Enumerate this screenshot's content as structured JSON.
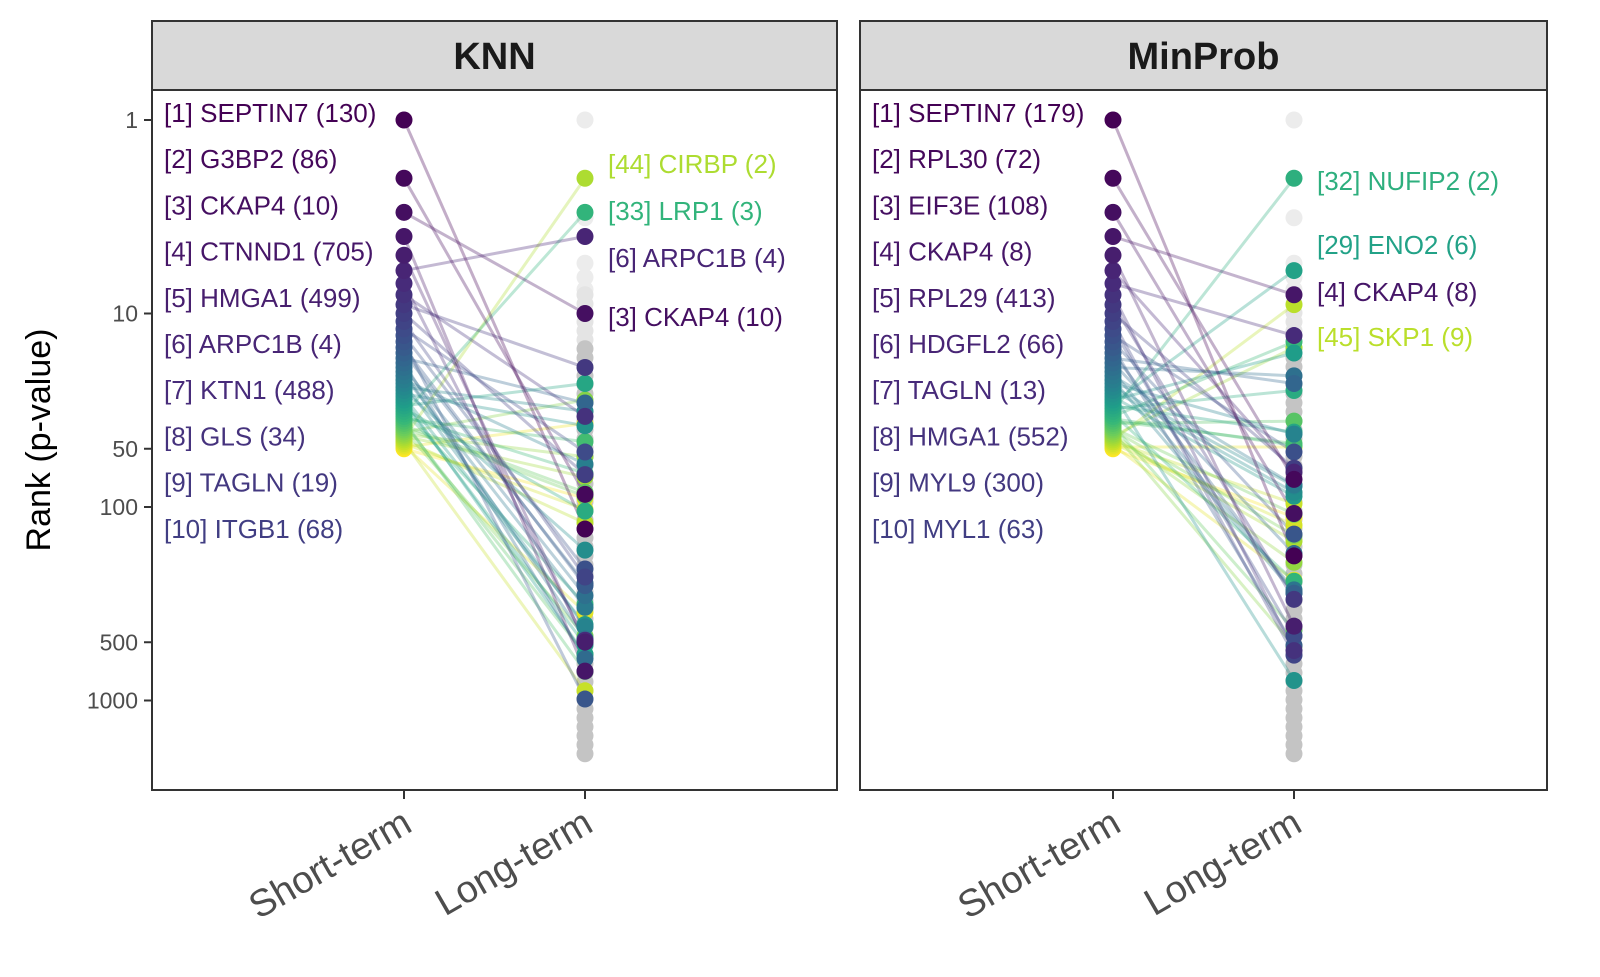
{
  "chart_data": {
    "type": "line",
    "ylabel": "Rank (p-value)",
    "y_scale": "log",
    "y_reversed": true,
    "yticks": [
      1,
      10,
      50,
      100,
      500,
      1000
    ],
    "categories": [
      "Short-term",
      "Long-term"
    ],
    "color_scale": "viridis (by short-term rank 1–50)",
    "panels": [
      {
        "title": "KNN",
        "short_term_labels": [
          {
            "rank": 1,
            "text": "[1] SEPTIN7 (130)",
            "long_rank": 130
          },
          {
            "rank": 2,
            "text": "[2] G3BP2 (86)",
            "long_rank": 86
          },
          {
            "rank": 3,
            "text": "[3] CKAP4 (10)",
            "long_rank": 10
          },
          {
            "rank": 4,
            "text": "[4] CTNND1 (705)",
            "long_rank": 705
          },
          {
            "rank": 5,
            "text": "[5] HMGA1 (499)",
            "long_rank": 499
          },
          {
            "rank": 6,
            "text": "[6] ARPC1B (4)",
            "long_rank": 4
          },
          {
            "rank": 7,
            "text": "[7] KTN1 (488)",
            "long_rank": 488
          },
          {
            "rank": 8,
            "text": "[8] GLS (34)",
            "long_rank": 34
          },
          {
            "rank": 9,
            "text": "[9] TAGLN (19)",
            "long_rank": 19
          },
          {
            "rank": 10,
            "text": "[10] ITGB1 (68)",
            "long_rank": 68
          }
        ],
        "long_term_labels": [
          {
            "long_rank": 2,
            "text": "[44] CIRBP (2)",
            "short_rank": 44
          },
          {
            "long_rank": 3,
            "text": "[33] LRP1 (3)",
            "short_rank": 33
          },
          {
            "long_rank": 4,
            "text": "[6] ARPC1B (4)",
            "short_rank": 6
          },
          {
            "long_rank": 10,
            "text": "[3] CKAP4 (10)",
            "short_rank": 3
          }
        ]
      },
      {
        "title": "MinProb",
        "short_term_labels": [
          {
            "rank": 1,
            "text": "[1] SEPTIN7 (179)",
            "long_rank": 179
          },
          {
            "rank": 2,
            "text": "[2] RPL30 (72)",
            "long_rank": 72
          },
          {
            "rank": 3,
            "text": "[3] EIF3E (108)",
            "long_rank": 108
          },
          {
            "rank": 4,
            "text": "[4] CKAP4 (8)",
            "long_rank": 8
          },
          {
            "rank": 5,
            "text": "[5] RPL29 (413)",
            "long_rank": 413
          },
          {
            "rank": 6,
            "text": "[6] HDGFL2 (66)",
            "long_rank": 66
          },
          {
            "rank": 7,
            "text": "[7] TAGLN (13)",
            "long_rank": 13
          },
          {
            "rank": 8,
            "text": "[8] HMGA1 (552)",
            "long_rank": 552
          },
          {
            "rank": 9,
            "text": "[9] MYL9 (300)",
            "long_rank": 300
          },
          {
            "rank": 10,
            "text": "[10] MYL1 (63)",
            "long_rank": 63
          }
        ],
        "long_term_labels": [
          {
            "long_rank": 2,
            "text": "[32] NUFIP2 (2)",
            "short_rank": 32
          },
          {
            "long_rank": 6,
            "text": "[29] ENO2 (6)",
            "short_rank": 29
          },
          {
            "long_rank": 8,
            "text": "[4] CKAP4 (8)",
            "short_rank": 4
          },
          {
            "long_rank": 9,
            "text": "[45] SKP1 (9)",
            "short_rank": 45
          }
        ]
      }
    ]
  }
}
